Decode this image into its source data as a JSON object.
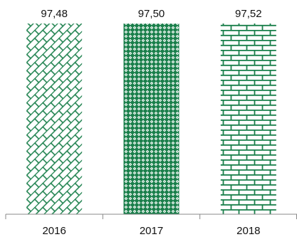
{
  "chart_data": {
    "type": "bar",
    "title": "",
    "xlabel": "",
    "ylabel": "",
    "categories": [
      "2016",
      "2017",
      "2018"
    ],
    "data_labels": [
      "97,48",
      "97,50",
      "97,52"
    ],
    "values": [
      97.48,
      97.5,
      97.52
    ],
    "ylim": [
      97.48,
      97.52
    ],
    "grid": false,
    "legend": "none",
    "colors": {
      "bar_pattern": "#1a7f4b",
      "axis": "#888888"
    },
    "patterns": [
      "diagonal-brick",
      "diamond-lattice",
      "horizontal-brick"
    ]
  }
}
